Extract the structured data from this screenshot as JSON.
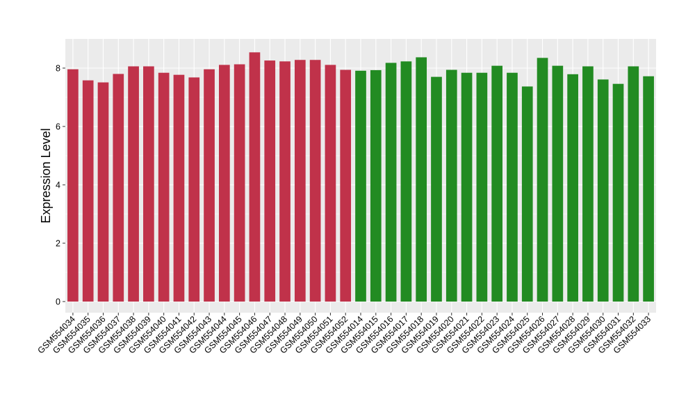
{
  "chart_data": {
    "type": "bar",
    "title": "",
    "xlabel": "",
    "ylabel": "Expression Level",
    "ylim": [
      0,
      9
    ],
    "yticks": [
      0,
      2,
      4,
      6,
      8
    ],
    "grid": true,
    "legend": "none",
    "colors": {
      "group_a": "#c0324a",
      "group_b": "#228b22",
      "panel_bg": "#ebebeb",
      "grid": "#ffffff",
      "tick": "#333333"
    },
    "categories": [
      "GSM554034",
      "GSM554035",
      "GSM554036",
      "GSM554037",
      "GSM554038",
      "GSM554039",
      "GSM554040",
      "GSM554041",
      "GSM554042",
      "GSM554043",
      "GSM554044",
      "GSM554045",
      "GSM554046",
      "GSM554047",
      "GSM554048",
      "GSM554049",
      "GSM554050",
      "GSM554051",
      "GSM554052",
      "GSM554014",
      "GSM554015",
      "GSM554016",
      "GSM554017",
      "GSM554018",
      "GSM554019",
      "GSM554020",
      "GSM554021",
      "GSM554022",
      "GSM554023",
      "GSM554024",
      "GSM554025",
      "GSM554026",
      "GSM554027",
      "GSM554028",
      "GSM554029",
      "GSM554030",
      "GSM554031",
      "GSM554032",
      "GSM554033"
    ],
    "values": [
      7.96,
      7.58,
      7.51,
      7.8,
      8.06,
      8.06,
      7.84,
      7.77,
      7.68,
      7.96,
      8.11,
      8.13,
      8.54,
      8.26,
      8.23,
      8.28,
      8.28,
      8.11,
      7.94,
      7.91,
      7.93,
      8.18,
      8.23,
      8.37,
      7.7,
      7.94,
      7.84,
      7.84,
      8.08,
      7.84,
      7.37,
      8.35,
      8.08,
      7.79,
      8.06,
      7.61,
      7.46,
      8.06,
      7.72
    ],
    "group_of_bar": [
      "a",
      "a",
      "a",
      "a",
      "a",
      "a",
      "a",
      "a",
      "a",
      "a",
      "a",
      "a",
      "a",
      "a",
      "a",
      "a",
      "a",
      "a",
      "a",
      "b",
      "b",
      "b",
      "b",
      "b",
      "b",
      "b",
      "b",
      "b",
      "b",
      "b",
      "b",
      "b",
      "b",
      "b",
      "b",
      "b",
      "b",
      "b",
      "b"
    ]
  }
}
